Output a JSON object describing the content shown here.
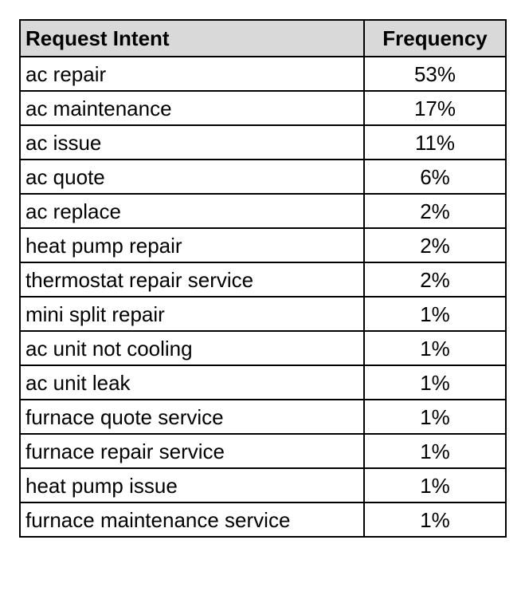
{
  "chart_data": {
    "type": "table",
    "columns": [
      "Request Intent",
      "Frequency"
    ],
    "rows": [
      [
        "ac repair",
        "53%"
      ],
      [
        "ac maintenance",
        "17%"
      ],
      [
        "ac issue",
        "11%"
      ],
      [
        "ac quote",
        "6%"
      ],
      [
        "ac replace",
        "2%"
      ],
      [
        "heat pump repair",
        "2%"
      ],
      [
        "thermostat repair service",
        "2%"
      ],
      [
        "mini split repair",
        "1%"
      ],
      [
        "ac unit not cooling",
        "1%"
      ],
      [
        "ac unit leak",
        "1%"
      ],
      [
        "furnace quote service",
        "1%"
      ],
      [
        "furnace repair service",
        "1%"
      ],
      [
        "heat pump issue",
        "1%"
      ],
      [
        "furnace maintenance service",
        "1%"
      ]
    ]
  },
  "colors": {
    "header_background": "#d9d9d9",
    "border": "#000000",
    "text": "#000000"
  }
}
